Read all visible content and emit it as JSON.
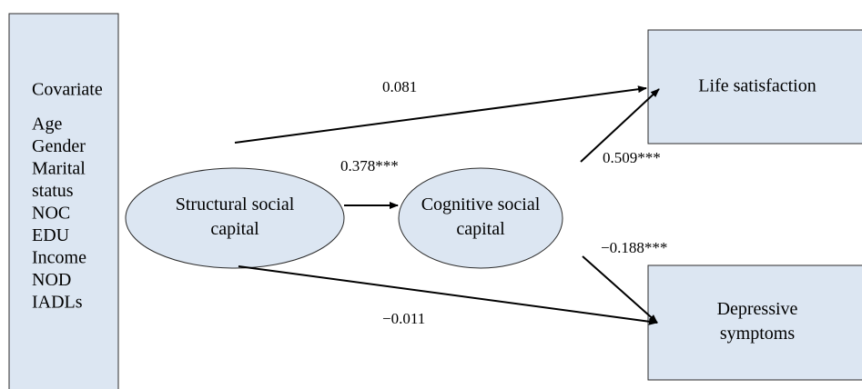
{
  "covariate": {
    "title": "Covariate",
    "items": [
      "Age",
      "Gender",
      "Marital",
      "status",
      "NOC",
      "EDU",
      "Income",
      "NOD",
      "IADLs"
    ]
  },
  "nodes": [
    {
      "label": [
        "Structural social",
        "capital"
      ]
    },
    {
      "label": [
        "Cognitive social",
        "capital"
      ]
    },
    {
      "label": [
        "Life satisfaction"
      ]
    },
    {
      "label": [
        "Depressive",
        "symptoms"
      ]
    }
  ],
  "edges": [
    {
      "label": "0.081"
    },
    {
      "label": "0.378***"
    },
    {
      "label": "0.509***"
    },
    {
      "label": "−0.188***"
    },
    {
      "label": "−0.011"
    }
  ]
}
